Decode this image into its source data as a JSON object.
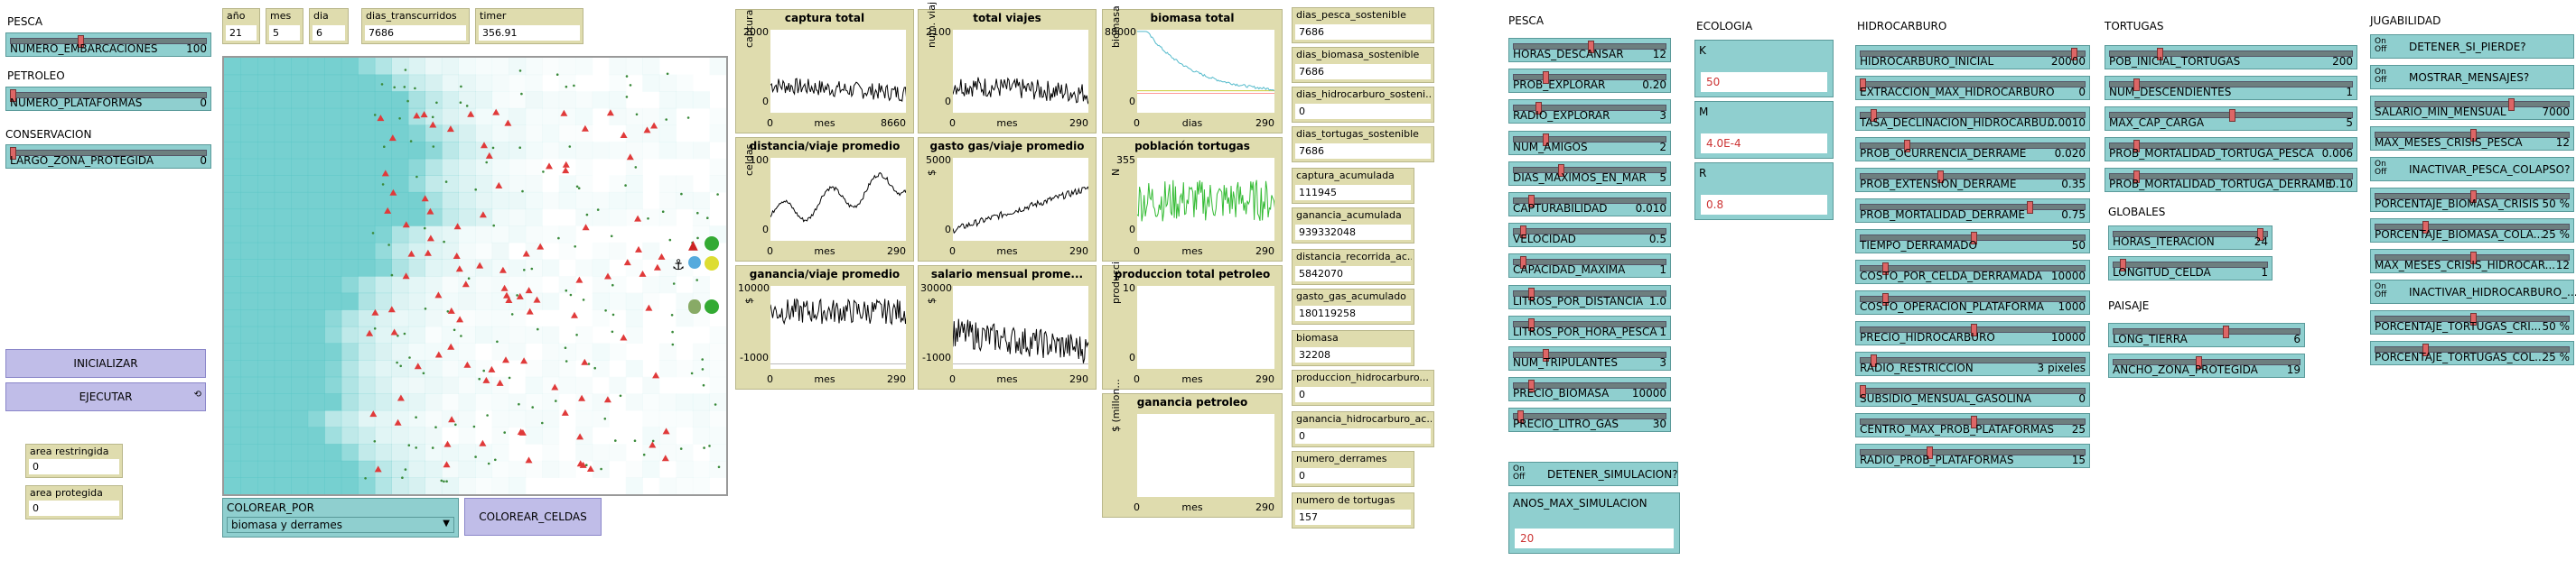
{
  "left": {
    "pesca_title": "PESCA",
    "petroleo_title": "PETROLEO",
    "conservacion_title": "CONSERVACION",
    "sliders": [
      {
        "name": "NUMERO_EMBARCACIONES",
        "value": "100",
        "frac": 0.35
      },
      {
        "name": "NUMERO_PLATAFORMAS",
        "value": "0",
        "frac": 0.0
      },
      {
        "name": "LARGO_ZONA_PROTEGIDA",
        "value": "0",
        "frac": 0.0
      }
    ],
    "inicializar": "INICIALIZAR",
    "ejecutar": "EJECUTAR",
    "monitors": [
      {
        "name": "area restringida",
        "value": "0"
      },
      {
        "name": "area protegida",
        "value": "0"
      }
    ]
  },
  "top_monitors": [
    {
      "name": "año",
      "value": "21"
    },
    {
      "name": "mes",
      "value": "5"
    },
    {
      "name": "dia",
      "value": "6"
    },
    {
      "name": "dias_transcurridos",
      "value": "7686"
    },
    {
      "name": "timer",
      "value": "356.91"
    }
  ],
  "world": {
    "colorear_por_label": "COLOREAR_POR",
    "colorear_por_value": "biomasa y derrames",
    "colorear_celdas": "COLOREAR_CELDAS"
  },
  "plots": [
    {
      "title": "captura total",
      "ymax": "2000",
      "ymin": "0",
      "ylabel": "captura",
      "xmin": "0",
      "xlabel": "mes",
      "xmax": "8660"
    },
    {
      "title": "total viajes",
      "ymax": "2100",
      "ymin": "0",
      "ylabel": "num. viaj",
      "xmin": "0",
      "xlabel": "mes",
      "xmax": "290"
    },
    {
      "title": "biomasa total",
      "ymax": "88000",
      "ymin": "0",
      "ylabel": "biomasa",
      "xmin": "0",
      "xlabel": "dias",
      "xmax": "290"
    },
    {
      "title": "distancia/viaje promedio",
      "ymax": "100",
      "ymin": "0",
      "ylabel": "celdas",
      "xmin": "0",
      "xlabel": "mes",
      "xmax": "290"
    },
    {
      "title": "gasto gas/viaje promedio",
      "ymax": "5000",
      "ymin": "0",
      "ylabel": "$",
      "xmin": "0",
      "xlabel": "mes",
      "xmax": "290"
    },
    {
      "title": "población tortugas",
      "ymax": "355",
      "ymin": "0",
      "ylabel": "N",
      "xmin": "0",
      "xlabel": "mes",
      "xmax": "290"
    },
    {
      "title": "ganancia/viaje promedio",
      "ymax": "10000",
      "ymin": "-1000",
      "ylabel": "$",
      "xmin": "0",
      "xlabel": "mes",
      "xmax": "290"
    },
    {
      "title": "salario mensual prome...",
      "ymax": "30000",
      "ymin": "-1000",
      "ylabel": "$",
      "xmin": "0",
      "xlabel": "mes",
      "xmax": "290"
    },
    {
      "title": "produccion total petroleo",
      "ymax": "10",
      "ymin": "0",
      "ylabel": "producci",
      "xmin": "0",
      "xlabel": "mes",
      "xmax": "290"
    },
    {
      "title": "ganancia petroleo",
      "ymax": "",
      "ymin": "",
      "ylabel": "$ (millon...",
      "xmin": "0",
      "xlabel": "mes",
      "xmax": "290"
    }
  ],
  "right_monitors": [
    {
      "name": "dias_pesca_sostenible",
      "value": "7686"
    },
    {
      "name": "dias_biomasa_sostenible",
      "value": "7686"
    },
    {
      "name": "dias_hidrocarburo_sosteni...",
      "value": "0"
    },
    {
      "name": "dias_tortugas_sostenible",
      "value": "7686"
    },
    {
      "name": "captura_acumulada",
      "value": "111945"
    },
    {
      "name": "ganancia_acumulada",
      "value": "939332048"
    },
    {
      "name": "distancia_recorrida_ac...",
      "value": "5842070"
    },
    {
      "name": "gasto_gas_acumulado",
      "value": "180119258"
    },
    {
      "name": "biomasa",
      "value": "32208"
    },
    {
      "name": "produccion_hidrocarburo...",
      "value": "0"
    },
    {
      "name": "ganancia_hidrocarburo_ac...",
      "value": "0"
    },
    {
      "name": "numero_derrames",
      "value": "0"
    },
    {
      "name": "numero de tortugas",
      "value": "157"
    }
  ],
  "pesca": {
    "title": "PESCA",
    "sliders": [
      {
        "name": "HORAS_DESCANSAR",
        "value": "12",
        "frac": 0.5
      },
      {
        "name": "PROB_EXPLORAR",
        "value": "0.20",
        "frac": 0.2
      },
      {
        "name": "RADIO_EXPLORAR",
        "value": "3",
        "frac": 0.15
      },
      {
        "name": "NUM_AMIGOS",
        "value": "2",
        "frac": 0.2
      },
      {
        "name": "DIAS_MAXIMOS_EN_MAR",
        "value": "5",
        "frac": 0.3
      },
      {
        "name": "CAPTURABILIDAD",
        "value": "0.010",
        "frac": 0.1
      },
      {
        "name": "VELOCIDAD",
        "value": "0.5",
        "frac": 0.05
      },
      {
        "name": "CAPACIDAD_MAXIMA",
        "value": "1",
        "frac": 0.05
      },
      {
        "name": "LITROS_POR_DISTANCIA",
        "value": "1.0",
        "frac": 0.1
      },
      {
        "name": "LITROS_POR_HORA_PESCA",
        "value": "1",
        "frac": 0.1
      },
      {
        "name": "NUM_TRIPULANTES",
        "value": "3",
        "frac": 0.2
      },
      {
        "name": "PRECIO_BIOMASA",
        "value": "10000",
        "frac": 0.1
      },
      {
        "name": "PRECIO_LITRO_GAS",
        "value": "30",
        "frac": 0.03
      }
    ],
    "detener_label": "DETENER_SIMULACION?",
    "anos_label": "ANOS_MAX_SIMULACION",
    "anos_value": "20"
  },
  "ecologia": {
    "title": "ECOLOGIA",
    "inputs": [
      {
        "name": "K",
        "value": "50"
      },
      {
        "name": "M",
        "value": "4.0E-4"
      },
      {
        "name": "R",
        "value": "0.8"
      }
    ]
  },
  "hidrocarburo": {
    "title": "HIDROCARBURO",
    "sliders": [
      {
        "name": "HIDROCARBURO_INICIAL",
        "value": "20000",
        "frac": 0.95
      },
      {
        "name": "EXTRACCION_MAX_HIDROCARBURO",
        "value": "0",
        "frac": 0.0
      },
      {
        "name": "TASA_DECLINACION_HIDROCARBU...",
        "value": "0.0010",
        "frac": 0.05
      },
      {
        "name": "PROB_OCURRENCIA_DERRAME",
        "value": "0.020",
        "frac": 0.2
      },
      {
        "name": "PROB_EXTENSION_DERRAME",
        "value": "0.35",
        "frac": 0.35
      },
      {
        "name": "PROB_MORTALIDAD_DERRAME",
        "value": "0.75",
        "frac": 0.75
      },
      {
        "name": "TIEMPO_DERRAMADO",
        "value": "50",
        "frac": 0.5
      },
      {
        "name": "COSTO_POR_CELDA_DERRAMADA",
        "value": "10000",
        "frac": 0.1
      },
      {
        "name": "COSTO_OPERACION_PLATAFORMA",
        "value": "1000",
        "frac": 0.1
      },
      {
        "name": "PRECIO_HIDROCARBURO",
        "value": "10000",
        "frac": 0.5
      },
      {
        "name": "RADIO_RESTRICCION",
        "value": "3 pixeles",
        "frac": 0.05
      },
      {
        "name": "SUBSIDIO_MENSUAL_GASOLINA",
        "value": "0",
        "frac": 0.0
      },
      {
        "name": "CENTRO_MAX_PROB_PLATAFORMAS",
        "value": "25",
        "frac": 0.5
      },
      {
        "name": "RADIO_PROB_PLATAFORMAS",
        "value": "15",
        "frac": 0.3
      }
    ]
  },
  "tortugas": {
    "title": "TORTUGAS",
    "sliders": [
      {
        "name": "POB_INICIAL_TORTUGAS",
        "value": "200",
        "frac": 0.2
      },
      {
        "name": "NUM_DESCENDIENTES",
        "value": "1",
        "frac": 0.1
      },
      {
        "name": "MAX_CAP_CARGA",
        "value": "5",
        "frac": 0.5
      },
      {
        "name": "PROB_MORTALIDAD_TORTUGA_PESCA",
        "value": "0.006",
        "frac": 0.1
      },
      {
        "name": "PROB_MORTALIDAD_TORTUGA_DERRAME",
        "value": "0.10",
        "frac": 0.1
      }
    ]
  },
  "globales": {
    "title": "GLOBALES",
    "sliders": [
      {
        "name": "HORAS_ITERACION",
        "value": "24",
        "frac": 0.95
      },
      {
        "name": "LONGITUD_CELDA",
        "value": "1",
        "frac": 0.05
      }
    ]
  },
  "paisaje": {
    "title": "PAISAJE",
    "sliders": [
      {
        "name": "LONG_TIERRA",
        "value": "6",
        "frac": 0.6
      },
      {
        "name": "ANCHO_ZONA_PROTEGIDA",
        "value": "19",
        "frac": 0.45
      }
    ]
  },
  "jugabilidad": {
    "title": "JUGABILIDAD",
    "items": [
      {
        "type": "switch",
        "name": "DETENER_SI_PIERDE?"
      },
      {
        "type": "switch",
        "name": "MOSTRAR_MENSAJES?"
      },
      {
        "type": "slider",
        "name": "SALARIO_MIN_MENSUAL",
        "value": "7000",
        "frac": 0.7
      },
      {
        "type": "slider",
        "name": "MAX_MESES_CRISIS_PESCA",
        "value": "12",
        "frac": 0.5
      },
      {
        "type": "switch",
        "name": "INACTIVAR_PESCA_COLAPSO?"
      },
      {
        "type": "slider",
        "name": "PORCENTAJE_BIOMASA_CRISIS",
        "value": "50 %",
        "frac": 0.5
      },
      {
        "type": "slider",
        "name": "PORCENTAJE_BIOMASA_COLA...",
        "value": "25 %",
        "frac": 0.25
      },
      {
        "type": "slider",
        "name": "MAX_MESES_CRISIS_HIDROCAR...",
        "value": "12",
        "frac": 0.5
      },
      {
        "type": "switch",
        "name": "INACTIVAR_HIDROCARBURO_..."
      },
      {
        "type": "slider",
        "name": "PORCENTAJE_TORTUGAS_CRI...",
        "value": "50 %",
        "frac": 0.5
      },
      {
        "type": "slider",
        "name": "PORCENTAJE_TORTUGAS_COL...",
        "value": "25 %",
        "frac": 0.25
      }
    ]
  },
  "switch_on": "On",
  "switch_off": "Off",
  "colors": {
    "slider": "#8fcfcf",
    "monitor": "#dfdcae",
    "button": "#c0bde8",
    "sea": "#ffffff",
    "coast": "#5ec8c8"
  }
}
